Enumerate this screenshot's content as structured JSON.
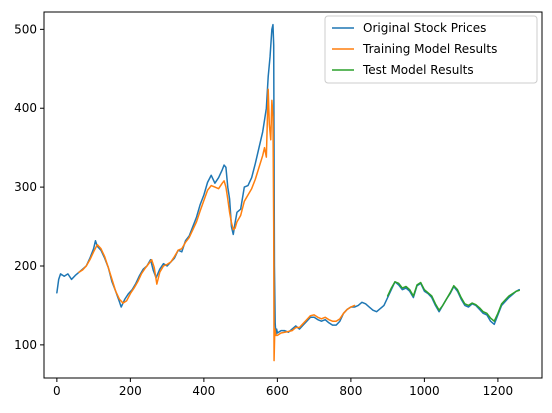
{
  "chart_data": {
    "type": "line",
    "xlim": [
      -35,
      1320
    ],
    "ylim": [
      58,
      522
    ],
    "x_ticks": [
      0,
      200,
      400,
      600,
      800,
      1000,
      1200
    ],
    "y_ticks": [
      100,
      200,
      300,
      400,
      500
    ],
    "legend_position": "top-right",
    "grid": false,
    "series": [
      {
        "name": "Original Stock Prices",
        "color": "#1f77b4",
        "points": [
          [
            0,
            166
          ],
          [
            5,
            183
          ],
          [
            10,
            190
          ],
          [
            20,
            187
          ],
          [
            30,
            190
          ],
          [
            40,
            183
          ],
          [
            50,
            188
          ],
          [
            60,
            192
          ],
          [
            70,
            196
          ],
          [
            80,
            200
          ],
          [
            90,
            210
          ],
          [
            100,
            222
          ],
          [
            105,
            232
          ],
          [
            110,
            225
          ],
          [
            120,
            220
          ],
          [
            130,
            210
          ],
          [
            140,
            198
          ],
          [
            150,
            180
          ],
          [
            160,
            168
          ],
          [
            170,
            155
          ],
          [
            175,
            148
          ],
          [
            185,
            158
          ],
          [
            195,
            165
          ],
          [
            205,
            170
          ],
          [
            215,
            178
          ],
          [
            225,
            188
          ],
          [
            235,
            196
          ],
          [
            245,
            200
          ],
          [
            255,
            208
          ],
          [
            262,
            195
          ],
          [
            270,
            185
          ],
          [
            280,
            196
          ],
          [
            290,
            203
          ],
          [
            300,
            200
          ],
          [
            310,
            205
          ],
          [
            320,
            210
          ],
          [
            330,
            220
          ],
          [
            340,
            218
          ],
          [
            350,
            232
          ],
          [
            360,
            238
          ],
          [
            370,
            250
          ],
          [
            380,
            262
          ],
          [
            390,
            278
          ],
          [
            400,
            290
          ],
          [
            410,
            306
          ],
          [
            420,
            315
          ],
          [
            430,
            305
          ],
          [
            440,
            312
          ],
          [
            450,
            322
          ],
          [
            455,
            328
          ],
          [
            460,
            325
          ],
          [
            465,
            300
          ],
          [
            470,
            285
          ],
          [
            475,
            250
          ],
          [
            480,
            240
          ],
          [
            485,
            255
          ],
          [
            490,
            268
          ],
          [
            500,
            272
          ],
          [
            510,
            300
          ],
          [
            520,
            302
          ],
          [
            530,
            312
          ],
          [
            540,
            330
          ],
          [
            550,
            350
          ],
          [
            560,
            370
          ],
          [
            565,
            385
          ],
          [
            570,
            400
          ],
          [
            575,
            440
          ],
          [
            580,
            465
          ],
          [
            585,
            500
          ],
          [
            588,
            506
          ],
          [
            590,
            480
          ],
          [
            592,
            200
          ],
          [
            594,
            128
          ],
          [
            596,
            112
          ],
          [
            598,
            120
          ],
          [
            600,
            115
          ],
          [
            610,
            118
          ],
          [
            620,
            118
          ],
          [
            630,
            116
          ],
          [
            640,
            120
          ],
          [
            650,
            124
          ],
          [
            660,
            120
          ],
          [
            670,
            125
          ],
          [
            680,
            130
          ],
          [
            690,
            135
          ],
          [
            700,
            135
          ],
          [
            710,
            132
          ],
          [
            720,
            130
          ],
          [
            730,
            132
          ],
          [
            740,
            128
          ],
          [
            750,
            125
          ],
          [
            760,
            125
          ],
          [
            770,
            130
          ],
          [
            780,
            140
          ],
          [
            790,
            145
          ],
          [
            800,
            148
          ],
          [
            810,
            148
          ],
          [
            820,
            150
          ],
          [
            830,
            154
          ],
          [
            840,
            152
          ],
          [
            850,
            148
          ],
          [
            860,
            144
          ],
          [
            870,
            142
          ],
          [
            880,
            146
          ],
          [
            890,
            150
          ],
          [
            900,
            160
          ],
          [
            910,
            170
          ],
          [
            920,
            180
          ],
          [
            930,
            176
          ],
          [
            940,
            170
          ],
          [
            950,
            172
          ],
          [
            960,
            168
          ],
          [
            970,
            160
          ],
          [
            980,
            175
          ],
          [
            990,
            178
          ],
          [
            1000,
            168
          ],
          [
            1010,
            165
          ],
          [
            1020,
            160
          ],
          [
            1030,
            150
          ],
          [
            1040,
            142
          ],
          [
            1050,
            150
          ],
          [
            1060,
            158
          ],
          [
            1070,
            165
          ],
          [
            1080,
            174
          ],
          [
            1090,
            168
          ],
          [
            1100,
            158
          ],
          [
            1110,
            150
          ],
          [
            1120,
            148
          ],
          [
            1130,
            152
          ],
          [
            1140,
            150
          ],
          [
            1150,
            145
          ],
          [
            1160,
            140
          ],
          [
            1170,
            138
          ],
          [
            1180,
            130
          ],
          [
            1190,
            126
          ],
          [
            1200,
            138
          ],
          [
            1210,
            150
          ],
          [
            1220,
            155
          ],
          [
            1230,
            160
          ],
          [
            1240,
            164
          ],
          [
            1250,
            168
          ],
          [
            1258,
            170
          ]
        ]
      },
      {
        "name": "Training Model Results",
        "color": "#ff7f0e",
        "points": [
          [
            60,
            192
          ],
          [
            70,
            195
          ],
          [
            80,
            200
          ],
          [
            90,
            208
          ],
          [
            100,
            218
          ],
          [
            110,
            227
          ],
          [
            120,
            222
          ],
          [
            130,
            212
          ],
          [
            140,
            198
          ],
          [
            150,
            183
          ],
          [
            160,
            168
          ],
          [
            170,
            158
          ],
          [
            180,
            153
          ],
          [
            190,
            156
          ],
          [
            200,
            165
          ],
          [
            210,
            172
          ],
          [
            220,
            180
          ],
          [
            230,
            190
          ],
          [
            240,
            197
          ],
          [
            250,
            203
          ],
          [
            258,
            208
          ],
          [
            265,
            198
          ],
          [
            272,
            177
          ],
          [
            280,
            192
          ],
          [
            290,
            200
          ],
          [
            300,
            202
          ],
          [
            310,
            205
          ],
          [
            320,
            212
          ],
          [
            330,
            220
          ],
          [
            340,
            222
          ],
          [
            350,
            230
          ],
          [
            360,
            236
          ],
          [
            370,
            246
          ],
          [
            380,
            256
          ],
          [
            390,
            270
          ],
          [
            400,
            283
          ],
          [
            410,
            296
          ],
          [
            420,
            302
          ],
          [
            430,
            300
          ],
          [
            440,
            298
          ],
          [
            450,
            305
          ],
          [
            455,
            308
          ],
          [
            460,
            300
          ],
          [
            465,
            285
          ],
          [
            470,
            268
          ],
          [
            475,
            255
          ],
          [
            480,
            246
          ],
          [
            485,
            248
          ],
          [
            490,
            256
          ],
          [
            500,
            264
          ],
          [
            510,
            282
          ],
          [
            520,
            290
          ],
          [
            530,
            298
          ],
          [
            540,
            310
          ],
          [
            550,
            325
          ],
          [
            560,
            340
          ],
          [
            565,
            350
          ],
          [
            570,
            338
          ],
          [
            575,
            424
          ],
          [
            578,
            380
          ],
          [
            582,
            360
          ],
          [
            585,
            410
          ],
          [
            588,
            390
          ],
          [
            590,
            250
          ],
          [
            591,
            80
          ],
          [
            593,
            120
          ],
          [
            596,
            112
          ],
          [
            600,
            112
          ],
          [
            610,
            115
          ],
          [
            620,
            116
          ],
          [
            630,
            117
          ],
          [
            640,
            118
          ],
          [
            650,
            122
          ],
          [
            660,
            122
          ],
          [
            670,
            127
          ],
          [
            680,
            132
          ],
          [
            690,
            137
          ],
          [
            700,
            138
          ],
          [
            710,
            135
          ],
          [
            720,
            133
          ],
          [
            730,
            135
          ],
          [
            740,
            132
          ],
          [
            750,
            130
          ],
          [
            760,
            130
          ],
          [
            770,
            133
          ],
          [
            780,
            140
          ],
          [
            790,
            145
          ],
          [
            800,
            148
          ],
          [
            810,
            150
          ]
        ]
      },
      {
        "name": "Test Model Results",
        "color": "#2ca02c",
        "points": [
          [
            900,
            162
          ],
          [
            910,
            172
          ],
          [
            920,
            180
          ],
          [
            930,
            178
          ],
          [
            940,
            172
          ],
          [
            950,
            174
          ],
          [
            960,
            170
          ],
          [
            970,
            162
          ],
          [
            980,
            176
          ],
          [
            990,
            179
          ],
          [
            1000,
            170
          ],
          [
            1010,
            166
          ],
          [
            1020,
            162
          ],
          [
            1030,
            152
          ],
          [
            1040,
            144
          ],
          [
            1050,
            150
          ],
          [
            1060,
            158
          ],
          [
            1070,
            166
          ],
          [
            1080,
            175
          ],
          [
            1090,
            170
          ],
          [
            1100,
            160
          ],
          [
            1110,
            152
          ],
          [
            1120,
            150
          ],
          [
            1130,
            153
          ],
          [
            1140,
            151
          ],
          [
            1150,
            147
          ],
          [
            1160,
            142
          ],
          [
            1170,
            140
          ],
          [
            1180,
            134
          ],
          [
            1190,
            130
          ],
          [
            1200,
            140
          ],
          [
            1210,
            152
          ],
          [
            1220,
            157
          ],
          [
            1230,
            162
          ],
          [
            1240,
            165
          ],
          [
            1250,
            168
          ],
          [
            1258,
            169
          ]
        ]
      }
    ]
  }
}
